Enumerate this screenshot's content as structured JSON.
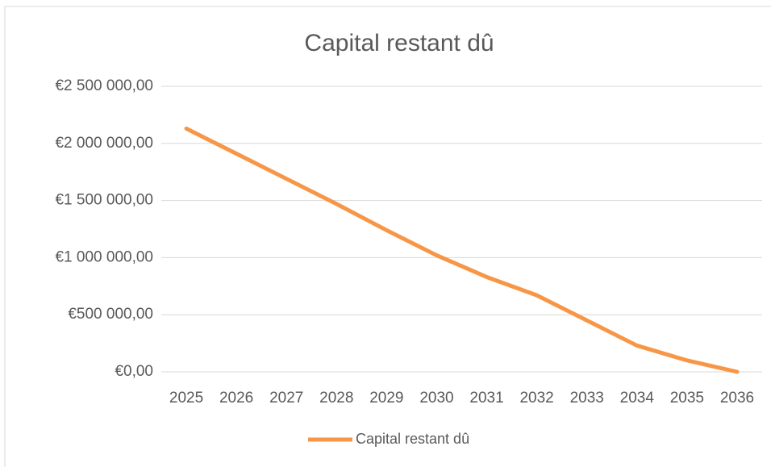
{
  "chart_data": {
    "type": "line",
    "title": "Capital restant dû",
    "categories": [
      "2025",
      "2026",
      "2027",
      "2028",
      "2029",
      "2030",
      "2031",
      "2032",
      "2033",
      "2034",
      "2035",
      "2036"
    ],
    "series": [
      {
        "name": "Capital restant dû",
        "color": "#f79646",
        "values": [
          2130000,
          1910000,
          1690000,
          1470000,
          1240000,
          1020000,
          830000,
          670000,
          450000,
          230000,
          100000,
          0
        ]
      }
    ],
    "ylim": [
      0,
      2500000
    ],
    "yticks": [
      {
        "value": 0,
        "label": "€0,00"
      },
      {
        "value": 500000,
        "label": "€500 000,00"
      },
      {
        "value": 1000000,
        "label": "€1 000 000,00"
      },
      {
        "value": 1500000,
        "label": "€1 500 000,00"
      },
      {
        "value": 2000000,
        "label": "€2 000 000,00"
      },
      {
        "value": 2500000,
        "label": "€2 500 000,00"
      }
    ],
    "grid": true,
    "legend": "bottom"
  }
}
